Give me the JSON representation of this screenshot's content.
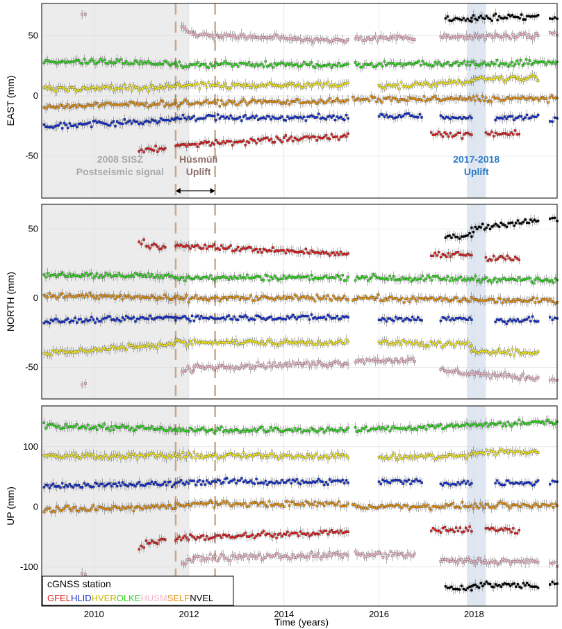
{
  "chart_data": {
    "type": "scatter",
    "xlabel": "Time (years)",
    "xlim": [
      2008.9,
      2019.75
    ],
    "xticks": [
      "2010",
      "2012",
      "2014",
      "2016",
      "2018"
    ],
    "grid": true,
    "shaded_periods": [
      {
        "x0": 2008.9,
        "x1": 2012.0,
        "color": "#ececec"
      },
      {
        "x0": 2017.85,
        "x1": 2018.25,
        "color": "#dfe7f2"
      }
    ],
    "dashed_lines_x": [
      2011.72,
      2012.55
    ],
    "dashed_line_color": "#c9a98c",
    "panels": [
      {
        "ylabel": "EAST (mm)",
        "ylim": [
          -85,
          77
        ],
        "yticks": [
          "-50",
          "0",
          "50"
        ],
        "annotations": [
          {
            "lines": [
              "2008 SISZ",
              "Postseismic signal"
            ],
            "x": 2010.55,
            "y": -60,
            "color": "#a8a8a8"
          },
          {
            "lines": [
              "Húsmúli",
              "Uplift"
            ],
            "x": 2012.2,
            "y": -60,
            "color": "#8b6e68"
          },
          {
            "lines": [
              "2017-2018",
              "Uplift"
            ],
            "x": 2018.05,
            "y": -60,
            "color": "#2a7ac8"
          }
        ],
        "arrow": {
          "x0": 2011.72,
          "x1": 2012.55,
          "y": -79
        }
      },
      {
        "ylabel": "NORTH (mm)",
        "ylim": [
          -73,
          68
        ],
        "yticks": [
          "-50",
          "0",
          "50"
        ]
      },
      {
        "ylabel": "UP (mm)",
        "ylim": [
          -165,
          168
        ],
        "yticks": [
          "-100",
          "0",
          "100"
        ]
      }
    ],
    "legend": {
      "title": "cGNSS station",
      "position": "bottom-left",
      "entries": [
        "GFEL",
        "HLID",
        "HVER",
        "OLKE",
        "HUSM",
        "SELF",
        "NVEL"
      ]
    },
    "series": [
      {
        "code": "GFEL",
        "color": "#d91f1f",
        "segments": [
          {
            "x0": 2010.95,
            "x1": 2011.05,
            "values": [
              -46,
              40,
              -68
            ]
          },
          {
            "x0": 2011.1,
            "x1": 2011.5,
            "values": [
              -44,
              38,
              -57
            ]
          },
          {
            "x0": 2011.72,
            "x1": 2015.35,
            "values": [
              [
                -41,
                -33
              ],
              [
                38,
                32
              ],
              [
                -52,
                -42
              ]
            ]
          },
          {
            "x0": 2017.1,
            "x1": 2017.95,
            "values": [
              -32,
              32,
              -38
            ]
          },
          {
            "x0": 2018.25,
            "x1": 2018.95,
            "values": [
              -31,
              29,
              -38
            ]
          }
        ]
      },
      {
        "code": "HLID",
        "color": "#1530c8",
        "segments": [
          {
            "x0": 2008.95,
            "x1": 2011.72,
            "values": [
              [
                -25,
                -20
              ],
              [
                -17,
                -14
              ],
              [
                35,
                38
              ]
            ]
          },
          {
            "x0": 2011.72,
            "x1": 2015.35,
            "values": [
              -18,
              -14,
              42
            ]
          },
          {
            "x0": 2016.0,
            "x1": 2016.9,
            "values": [
              -17,
              -15,
              42
            ]
          },
          {
            "x0": 2017.3,
            "x1": 2017.95,
            "values": [
              -18,
              -15,
              40
            ]
          },
          {
            "x0": 2018.45,
            "x1": 2019.35,
            "values": [
              -18,
              -16,
              40
            ]
          },
          {
            "x0": 2019.6,
            "x1": 2019.75,
            "values": [
              -19,
              -15,
              42
            ]
          }
        ]
      },
      {
        "code": "HVER",
        "color": "#f2e81c",
        "segments": [
          {
            "x0": 2008.95,
            "x1": 2011.72,
            "values": [
              [
                6,
                7
              ],
              [
                -40,
                -33
              ],
              [
                85,
                85
              ]
            ]
          },
          {
            "x0": 2011.72,
            "x1": 2015.35,
            "values": [
              9,
              -32,
              85
            ]
          },
          {
            "x0": 2016.0,
            "x1": 2017.95,
            "values": [
              [
                8,
                12
              ],
              [
                -32,
                -34
              ],
              [
                82,
                85
              ]
            ]
          },
          {
            "x0": 2017.95,
            "x1": 2019.35,
            "values": [
              [
                14,
                15
              ],
              [
                -38,
                -40
              ],
              [
                90,
                92
              ]
            ]
          }
        ]
      },
      {
        "code": "OLKE",
        "color": "#2ed21e",
        "segments": [
          {
            "x0": 2008.95,
            "x1": 2011.72,
            "values": [
              [
                29,
                27
              ],
              [
                17,
                16
              ],
              [
                135,
                130
              ]
            ]
          },
          {
            "x0": 2011.72,
            "x1": 2015.35,
            "values": [
              26,
              15,
              128
            ]
          },
          {
            "x0": 2015.5,
            "x1": 2019.75,
            "values": [
              [
                26,
                28
              ],
              [
                15,
                13
              ],
              [
                128,
                142
              ]
            ]
          }
        ]
      },
      {
        "code": "HUSM",
        "color": "#f2b6c6",
        "segments": [
          {
            "x0": 2009.75,
            "x1": 2009.82,
            "values": [
              70,
              -63,
              -108
            ]
          },
          {
            "x0": 2011.85,
            "x1": 2012.1,
            "values": [
              [
                57,
                52
              ],
              [
                -53,
                -51
              ],
              [
                -95,
                -90
              ]
            ]
          },
          {
            "x0": 2012.1,
            "x1": 2015.35,
            "values": [
              [
                51,
                46
              ],
              [
                -50,
                -47
              ],
              [
                -85,
                -80
              ]
            ]
          },
          {
            "x0": 2015.5,
            "x1": 2016.75,
            "values": [
              48,
              -45,
              -80
            ]
          },
          {
            "x0": 2017.3,
            "x1": 2019.35,
            "values": [
              [
                49,
                50
              ],
              [
                -53,
                -58
              ],
              [
                -90,
                -92
              ]
            ]
          },
          {
            "x0": 2019.6,
            "x1": 2019.75,
            "values": [
              52,
              -59,
              -95
            ]
          }
        ]
      },
      {
        "code": "SELF",
        "color": "#e08e12",
        "segments": [
          {
            "x0": 2008.95,
            "x1": 2011.72,
            "values": [
              [
                -9,
                -6
              ],
              [
                2,
                0
              ],
              [
                -5,
                0
              ]
            ]
          },
          {
            "x0": 2011.72,
            "x1": 2015.35,
            "values": [
              [
                -6,
                -4
              ],
              [
                0,
                0
              ],
              [
                5,
                5
              ]
            ]
          },
          {
            "x0": 2015.45,
            "x1": 2019.75,
            "values": [
              [
                -3,
                -2
              ],
              [
                0,
                -2
              ],
              [
                0,
                3
              ]
            ]
          }
        ]
      },
      {
        "code": "NVEL",
        "color": "#000000",
        "segments": [
          {
            "x0": 2017.4,
            "x1": 2017.95,
            "values": [
              [
                63,
                64
              ],
              [
                45,
                46
              ],
              [
                -135,
                -135
              ]
            ]
          },
          {
            "x0": 2017.95,
            "x1": 2019.35,
            "values": [
              [
                65,
                66
              ],
              [
                50,
                57
              ],
              [
                -130,
                -130
              ]
            ]
          },
          {
            "x0": 2019.6,
            "x1": 2019.75,
            "values": [
              64,
              58,
              -130
            ]
          }
        ]
      }
    ]
  }
}
